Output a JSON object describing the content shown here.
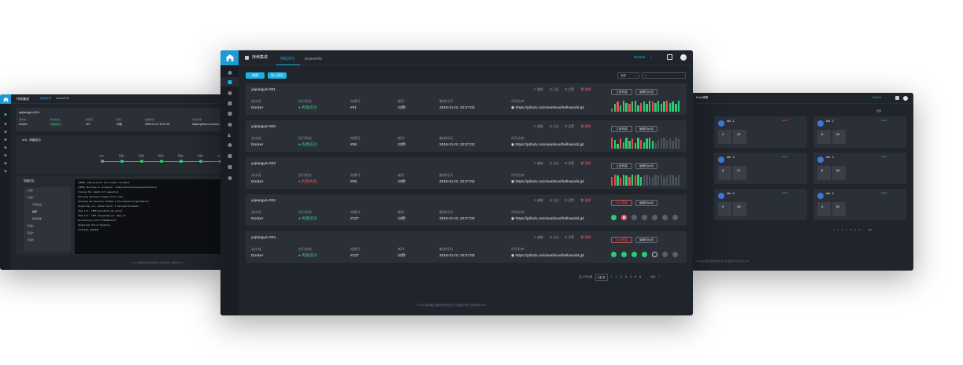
{
  "center": {
    "brand": "持续集成",
    "tabs": [
      "持续交付",
      "DockerFile"
    ],
    "user_menu": "Default",
    "toolbar": {
      "btn1": "新建",
      "btn2": "导入项目",
      "filter": "全部"
    },
    "columns": [
      "流水线",
      "执行状态",
      "构建号",
      "耗时",
      "触发时间",
      "代码仓库"
    ],
    "actions": [
      "编辑",
      "日志",
      "设置",
      "删除"
    ],
    "rows": [
      {
        "name": "yejiangyin-001",
        "pipeline": "Docker",
        "status": "构建成功",
        "status_kind": "ok",
        "build": "#01",
        "duration": "32秒",
        "time": "2019-01-01  10:27:03",
        "repo": "https://github.com/wanlinus/helloworld.git",
        "btn_run": "立即构建",
        "btn_edit": "编辑流水线",
        "run_red": false,
        "viz": "bars",
        "bars": [
          3,
          7,
          9,
          6,
          10,
          8,
          7,
          9,
          10,
          6,
          8,
          9,
          7,
          10,
          9,
          8,
          10,
          7,
          9,
          10,
          8,
          9,
          7,
          10
        ],
        "colors": [
          "r",
          "g",
          "r",
          "g",
          "g",
          "g",
          "r",
          "g",
          "g",
          "g",
          "r",
          "g",
          "g",
          "g",
          "r",
          "g",
          "g",
          "g",
          "g",
          "r",
          "g",
          "g",
          "g",
          "g"
        ]
      },
      {
        "name": "yejiangyin-002",
        "pipeline": "Docker",
        "status": "构建成功",
        "status_kind": "ok",
        "build": "#98",
        "duration": "32秒",
        "time": "2019-01-01  10:27:03",
        "repo": "https://github.com/wanlinus/helloworld.git",
        "btn_run": "立即构建",
        "btn_edit": "编辑流水线",
        "run_red": false,
        "viz": "bars",
        "bars": [
          10,
          8,
          4,
          9,
          6,
          10,
          7,
          9,
          5,
          10,
          8,
          6,
          9,
          10,
          7,
          5,
          8,
          9,
          10,
          8,
          9,
          7,
          10,
          9
        ],
        "colors": [
          "r",
          "g",
          "g",
          "r",
          "g",
          "g",
          "g",
          "r",
          "g",
          "g",
          "r",
          "g",
          "g",
          "g",
          "g",
          "gr",
          "gr",
          "gr",
          "gr",
          "gr",
          "gr",
          "gr",
          "gr",
          "gr"
        ]
      },
      {
        "name": "yejiangyin-003",
        "pipeline": "Docker",
        "status": "构建失败",
        "status_kind": "err",
        "build": "#05",
        "duration": "32秒",
        "time": "2019-01-01  10:27:03",
        "repo": "https://github.com/wanlinus/helloworld.git",
        "btn_run": "立即构建",
        "btn_edit": "编辑流水线",
        "run_red": false,
        "viz": "bars",
        "bars": [
          8,
          10,
          9,
          7,
          10,
          9,
          8,
          10,
          9,
          10,
          8,
          9,
          10,
          9,
          8,
          10,
          9,
          10,
          8,
          9,
          10,
          9,
          8,
          10
        ],
        "colors": [
          "r",
          "r",
          "g",
          "r",
          "g",
          "g",
          "r",
          "g",
          "r",
          "g",
          "g",
          "gr",
          "gr",
          "gr",
          "gr",
          "gr",
          "gr",
          "gr",
          "gr",
          "gr",
          "gr",
          "gr",
          "gr",
          "gr"
        ]
      },
      {
        "name": "yejiangyin-004",
        "pipeline": "Docker",
        "status": "构建成功",
        "status_kind": "ok",
        "build": "#127",
        "duration": "32秒",
        "time": "2019-01-01  10:27:03",
        "repo": "https://github.com/wanlinus/helloworld.git",
        "btn_run": "中止构建",
        "btn_edit": "编辑流水线",
        "run_red": true,
        "viz": "stages",
        "stages": [
          "ok",
          "err",
          "idle",
          "idle",
          "idle",
          "idle",
          "idle"
        ]
      },
      {
        "name": "yejiangyin-004",
        "pipeline": "Docker",
        "status": "构建成功",
        "status_kind": "ok",
        "build": "#127",
        "duration": "32秒",
        "time": "2019-01-01  10:27:03",
        "repo": "https://github.com/wanlinus/helloworld.git",
        "btn_run": "中止构建",
        "btn_edit": "编辑流水线",
        "run_red": true,
        "viz": "stages",
        "stages": [
          "ok",
          "ok",
          "ok",
          "ok",
          "spin",
          "idle",
          "idle"
        ]
      }
    ],
    "pagination": {
      "total": "共 1078 条",
      "size": "5条/页",
      "pages": [
        "1",
        "2",
        "3",
        "4",
        "5",
        "6",
        "…",
        "100"
      ]
    },
    "footer": "© 2019 深圳集云数科科技有限公司 版权所有 法律条款 v3.0"
  },
  "left": {
    "brand": "持续集成",
    "tabs": [
      "持续交付",
      "DockerFile"
    ],
    "title": "yejiangyin-004",
    "columns": [
      "流水线",
      "执行状态",
      "构建号",
      "耗时",
      "触发时间",
      "代码仓库"
    ],
    "row": {
      "pipeline": "Docker",
      "status": "构建成功",
      "build": "#27",
      "duration": "32秒",
      "time": "2019-01-01  10:27:03",
      "repo": "https://github.com/wanl"
    },
    "section": "#15 - 构建成功",
    "stage_labels": [
      "Start",
      "阶段1",
      "阶段2",
      "阶段3",
      "阶段4",
      "阶段5",
      "End"
    ],
    "tree_title": "构建日志",
    "tree_items": [
      "阶段1",
      "阶段2",
      "代码检出",
      "编译",
      "构建镜像",
      "阶段3",
      "阶段4",
      "阶段5"
    ],
    "log_lines": [
      "[INFO] Loading build environment variables",
      "[INFO] Building in workspace: /home/jenkins/workspace/helloworld",
      "Cloning the remote Git repository",
      "Fetching upstream changes from origin",
      "Checking out Revision 4f2e6a1 (refs/remotes/origin/master)",
      "[Pipeline] sh  + docker build -t helloworld:latest .",
      "Step 1/6 : FROM openjdk:8-jdk-alpine",
      "Step 2/6 : COPY target/app.jar /app.jar",
      "Successfully built 5f3a9b2c1e7d",
      "[Pipeline] End of Pipeline",
      "Finished: SUCCESS"
    ],
    "footer": "© 2019 深圳集云数科科技有限公司 版权所有 法律条款 v3.0"
  },
  "right": {
    "brand": "Dock镜像",
    "user_menu": "Default",
    "filter": "全部",
    "cards": [
      {
        "title": "k8s - 1",
        "badge": "Failed",
        "a": "2",
        "b": "49"
      },
      {
        "title": "k8s - 2",
        "badge": "Active",
        "a": "8",
        "b": "90"
      },
      {
        "title": "k8s - 3",
        "badge": "Active",
        "a": "8",
        "b": "37"
      },
      {
        "title": "k8s - 4",
        "badge": "Active",
        "a": "8",
        "b": "69"
      },
      {
        "title": "k8s - 5",
        "badge": "Active",
        "a": "5",
        "b": "36"
      },
      {
        "title": "k8s - 6",
        "badge": "Active",
        "a": "4",
        "b": "52"
      }
    ],
    "pages": [
      "1",
      "2",
      "3",
      "4",
      "5",
      "6",
      "7",
      "…",
      "100"
    ],
    "footer": "© 2019 深圳集云数科科技有限公司 版权所有 法律条款 v3.0"
  }
}
